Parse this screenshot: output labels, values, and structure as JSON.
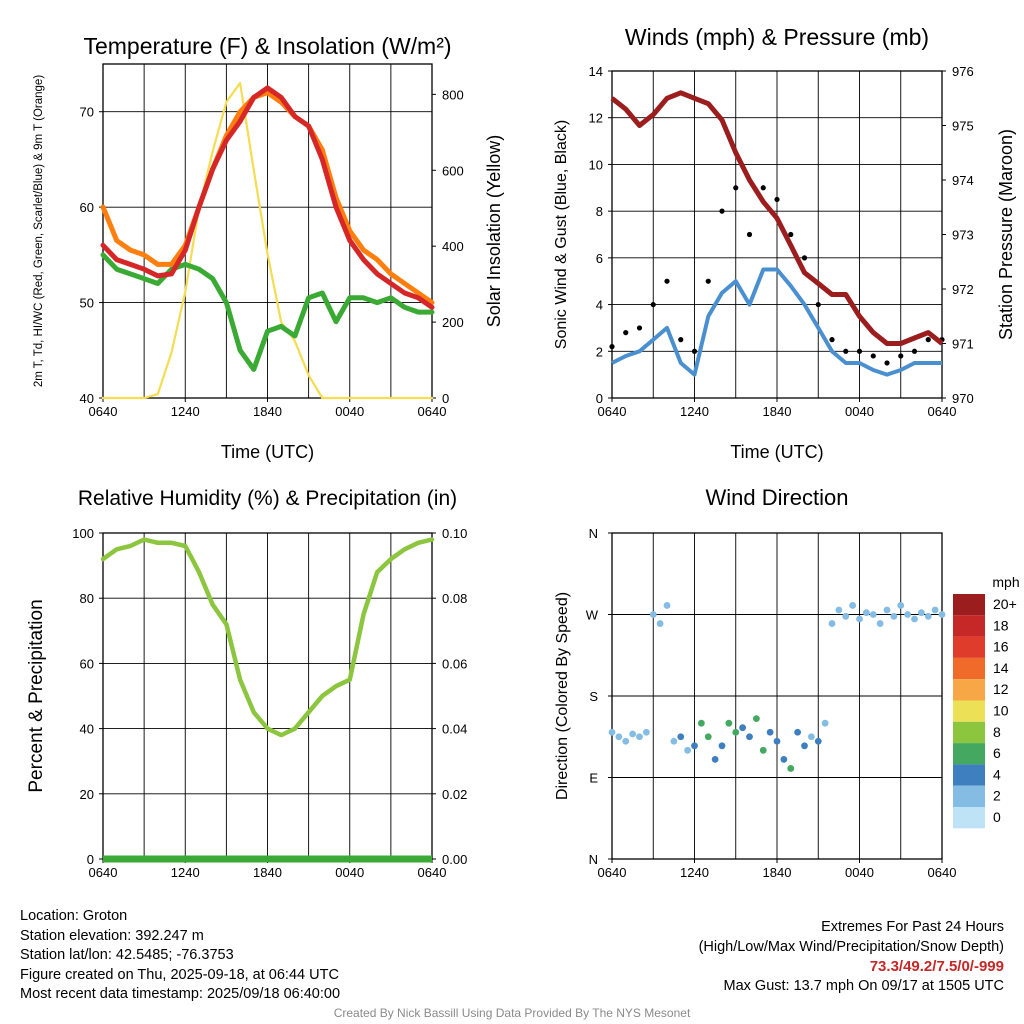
{
  "chart_data": [
    {
      "type": "line",
      "title": "Temperature (F) & Insolation (W/m²)",
      "xlabel": "Time (UTC)",
      "ylabel_left": "2m T, Td, HI/WC (Red, Green, Scarlet/Blue) & 9m T (Orange)",
      "ylabel_right": "Solar Insolation (Yellow)",
      "x_ticks": [
        "0640",
        "1240",
        "1840",
        "0040",
        "0640"
      ],
      "ylim_left": [
        40,
        75
      ],
      "yticks_left": [
        40,
        50,
        60,
        70
      ],
      "ylim_right": [
        0,
        880
      ],
      "yticks_right": [
        0,
        200,
        400,
        600,
        800
      ],
      "x": [
        0,
        1,
        2,
        3,
        4,
        5,
        6,
        7,
        8,
        9,
        10,
        11,
        12,
        13,
        14,
        15,
        16,
        17,
        18,
        19,
        20,
        21,
        22,
        23,
        24
      ],
      "series": [
        {
          "color": "#d62728",
          "axis": "left",
          "values": [
            56.0,
            54.5,
            54.0,
            53.5,
            52.8,
            53.0,
            55.5,
            60.0,
            64.0,
            67.0,
            69.0,
            71.5,
            72.5,
            71.5,
            69.5,
            68.5,
            65.0,
            60.0,
            56.5,
            54.5,
            53.0,
            52.0,
            51.0,
            50.5,
            49.5
          ]
        },
        {
          "color": "#ff7f0e",
          "axis": "left",
          "values": [
            60.0,
            56.5,
            55.5,
            55.0,
            54.0,
            54.0,
            56.0,
            60.0,
            64.0,
            67.5,
            70.0,
            71.5,
            72.0,
            71.0,
            69.5,
            68.5,
            66.0,
            61.0,
            57.5,
            55.5,
            54.5,
            53.0,
            52.0,
            51.0,
            50.0
          ]
        },
        {
          "color": "#3aaa35",
          "axis": "left",
          "values": [
            55.0,
            53.5,
            53.0,
            52.5,
            52.0,
            53.5,
            54.0,
            53.5,
            52.5,
            50.0,
            45.0,
            43.0,
            47.0,
            47.5,
            46.5,
            50.5,
            51.0,
            48.0,
            50.5,
            50.5,
            50.0,
            50.5,
            49.5,
            49.0,
            49.0
          ]
        },
        {
          "color": "#f5dc50",
          "axis": "right",
          "values": [
            0,
            0,
            0,
            0,
            10,
            120,
            280,
            500,
            650,
            780,
            830,
            600,
            380,
            200,
            150,
            60,
            0,
            0,
            0,
            0,
            0,
            0,
            0,
            0,
            0
          ]
        }
      ]
    },
    {
      "type": "scatter",
      "title": "Winds (mph) & Pressure (mb)",
      "xlabel": "Time (UTC)",
      "ylabel_left": "Sonic Wind & Gust (Blue, Black)",
      "ylabel_right": "Station Pressure (Maroon)",
      "x_ticks": [
        "0640",
        "1240",
        "1840",
        "0040",
        "0640"
      ],
      "ylim_left": [
        0,
        14
      ],
      "yticks_left": [
        0,
        2,
        4,
        6,
        8,
        10,
        12,
        14
      ],
      "ylim_right": [
        970,
        976
      ],
      "yticks_right": [
        970,
        971,
        972,
        973,
        974,
        975,
        976
      ],
      "x": [
        0,
        1,
        2,
        3,
        4,
        5,
        6,
        7,
        8,
        9,
        10,
        11,
        12,
        13,
        14,
        15,
        16,
        17,
        18,
        19,
        20,
        21,
        22,
        23,
        24
      ],
      "series": [
        {
          "color": "#4a90d0",
          "axis": "left",
          "values": [
            1.5,
            1.8,
            2.0,
            2.5,
            3.0,
            1.5,
            1.0,
            3.5,
            4.5,
            5.0,
            4.0,
            5.5,
            5.5,
            4.8,
            4.0,
            3.0,
            2.0,
            1.5,
            1.5,
            1.2,
            1.0,
            1.2,
            1.5,
            1.5,
            1.5
          ]
        },
        {
          "color": "#000000",
          "axis": "left",
          "values": [
            2.2,
            2.8,
            3.0,
            4.0,
            5.0,
            2.5,
            2.0,
            5.0,
            8.0,
            9.0,
            7.0,
            9.0,
            8.5,
            7.0,
            6.0,
            4.0,
            2.5,
            2.0,
            2.0,
            1.8,
            1.5,
            1.8,
            2.0,
            2.5,
            2.5
          ]
        },
        {
          "color": "#9b1d1d",
          "axis": "right",
          "values": [
            975.5,
            975.3,
            975.0,
            975.2,
            975.5,
            975.6,
            975.5,
            975.4,
            975.1,
            974.5,
            974.0,
            973.6,
            973.3,
            972.8,
            972.3,
            972.1,
            971.9,
            971.9,
            971.5,
            971.2,
            971.0,
            971.0,
            971.1,
            971.2,
            971.0
          ]
        }
      ]
    },
    {
      "type": "line",
      "title": "Relative Humidity (%) & Precipitation (in)",
      "ylabel_left": "Percent & Precipitation",
      "x_ticks": [
        "0640",
        "1240",
        "1840",
        "0040",
        "0640"
      ],
      "ylim_left": [
        0,
        100
      ],
      "yticks_left": [
        0,
        20,
        40,
        60,
        80,
        100
      ],
      "ylim_right": [
        0,
        0.1
      ],
      "yticks_right": [
        "0.00",
        "0.02",
        "0.04",
        "0.06",
        "0.08",
        "0.10"
      ],
      "x": [
        0,
        1,
        2,
        3,
        4,
        5,
        6,
        7,
        8,
        9,
        10,
        11,
        12,
        13,
        14,
        15,
        16,
        17,
        18,
        19,
        20,
        21,
        22,
        23,
        24
      ],
      "series": [
        {
          "color": "#8cc63f",
          "axis": "left",
          "values": [
            92,
            95,
            96,
            98,
            97,
            97,
            96,
            88,
            78,
            72,
            55,
            45,
            40,
            38,
            40,
            45,
            50,
            53,
            55,
            75,
            88,
            92,
            95,
            97,
            98
          ]
        },
        {
          "color": "#3aaa35",
          "axis": "right",
          "values": [
            0,
            0,
            0,
            0,
            0,
            0,
            0,
            0,
            0,
            0,
            0,
            0,
            0,
            0,
            0,
            0,
            0,
            0,
            0,
            0,
            0,
            0,
            0,
            0,
            0
          ]
        }
      ]
    },
    {
      "type": "scatter",
      "title": "Wind Direction",
      "ylabel": "Direction (Colored By Speed)",
      "x_ticks": [
        "0640",
        "1240",
        "1840",
        "0040",
        "0640"
      ],
      "y_ticks": [
        "N",
        "E",
        "S",
        "W",
        "N"
      ],
      "ylim": [
        0,
        360
      ],
      "x": [
        0,
        0.5,
        1,
        1.5,
        2,
        2.5,
        3,
        3.5,
        4,
        4.5,
        5,
        5.5,
        6,
        6.5,
        7,
        7.5,
        8,
        8.5,
        9,
        9.5,
        10,
        10.5,
        11,
        11.5,
        12,
        12.5,
        13,
        13.5,
        14,
        14.5,
        15,
        15.5,
        16,
        16.5,
        17,
        17.5,
        18,
        18.5,
        19,
        19.5,
        20,
        20.5,
        21,
        21.5,
        22,
        22.5,
        23,
        23.5,
        24
      ],
      "values": [
        140,
        135,
        130,
        138,
        135,
        140,
        270,
        260,
        280,
        130,
        135,
        120,
        125,
        150,
        135,
        110,
        125,
        150,
        140,
        145,
        135,
        155,
        120,
        140,
        130,
        110,
        100,
        140,
        125,
        135,
        130,
        150,
        260,
        275,
        268,
        280,
        265,
        272,
        270,
        260,
        275,
        268,
        280,
        270,
        265,
        272,
        268,
        275,
        270
      ],
      "speeds": [
        2,
        1,
        2,
        1,
        2,
        2,
        1,
        2,
        1,
        2,
        3,
        2,
        3,
        6,
        5,
        3,
        4,
        5,
        6,
        3,
        4,
        5,
        6,
        4,
        3,
        4,
        6,
        4,
        3,
        2,
        3,
        2,
        1,
        2,
        1,
        2,
        1,
        2,
        1,
        2,
        1,
        2,
        1,
        2,
        1,
        2,
        1,
        2,
        1
      ],
      "legend": {
        "title": "mph",
        "items": [
          {
            "label": "20+",
            "color": "#9b1d1d"
          },
          {
            "label": "18",
            "color": "#c62828"
          },
          {
            "label": "16",
            "color": "#e03c2b"
          },
          {
            "label": "14",
            "color": "#f06a2a"
          },
          {
            "label": "12",
            "color": "#f7a745"
          },
          {
            "label": "10",
            "color": "#ece056"
          },
          {
            "label": "8",
            "color": "#8cc63f"
          },
          {
            "label": "6",
            "color": "#45a860"
          },
          {
            "label": "4",
            "color": "#3d7fbf"
          },
          {
            "label": "2",
            "color": "#84bce4"
          },
          {
            "label": "0",
            "color": "#bfe3f6"
          }
        ]
      }
    }
  ],
  "info": {
    "location": "Location: Groton",
    "elevation": "Station elevation: 392.247 m",
    "latlon": "Station lat/lon: 42.5485; -76.3753",
    "created": "Figure created on Thu, 2025-09-18, at 06:44 UTC",
    "recent": "Most recent data timestamp: 2025/09/18 06:40:00"
  },
  "extremes": {
    "heading": "Extremes For Past 24 Hours",
    "subheading": "(High/Low/Max Wind/Precipitation/Snow Depth)",
    "values": "73.3/49.2/7.5/0/-999",
    "gust": "Max Gust: 13.7 mph On 09/17 at 1505 UTC"
  },
  "credit": "Created By Nick Bassill Using Data Provided By The NYS Mesonet"
}
